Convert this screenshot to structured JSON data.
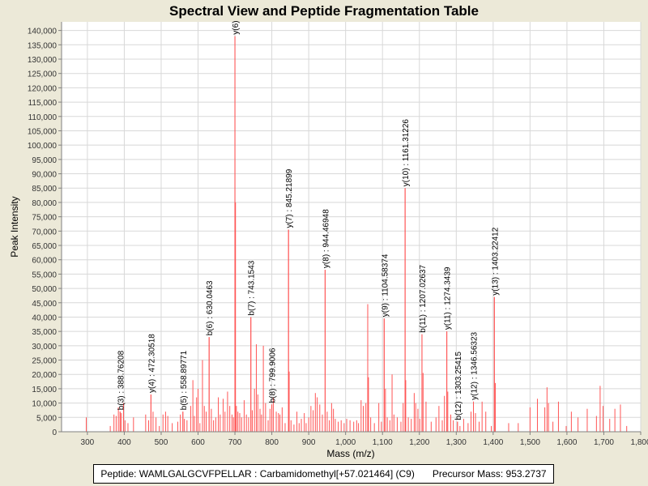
{
  "chart_data": {
    "type": "bar",
    "title": "Spectral View and Peptide Fragmentation Table",
    "xlabel": "Mass (m/z)",
    "ylabel": "Peak Intensity",
    "xlim": [
      230,
      1800
    ],
    "ylim": [
      0,
      143000
    ],
    "xticks": [
      300,
      400,
      500,
      600,
      700,
      800,
      900,
      1000,
      1100,
      1200,
      1300,
      1400,
      1500,
      1600,
      1700,
      1800
    ],
    "xtick_labels": [
      "300",
      "400",
      "500",
      "600",
      "700",
      "800",
      "900",
      "1,000",
      "1,100",
      "1,200",
      "1,300",
      "1,400",
      "1,500",
      "1,600",
      "1,700",
      "1,800"
    ],
    "yticks": [
      0,
      5000,
      10000,
      15000,
      20000,
      25000,
      30000,
      35000,
      40000,
      45000,
      50000,
      55000,
      60000,
      65000,
      70000,
      75000,
      80000,
      85000,
      90000,
      95000,
      100000,
      105000,
      110000,
      115000,
      120000,
      125000,
      130000,
      135000,
      140000
    ],
    "ytick_labels": [
      "0",
      "5,000",
      "10,000",
      "15,000",
      "20,000",
      "25,000",
      "30,000",
      "35,000",
      "40,000",
      "45,000",
      "50,000",
      "55,000",
      "60,000",
      "65,000",
      "70,000",
      "75,000",
      "80,000",
      "85,000",
      "90,000",
      "95,000",
      "100,000",
      "105,000",
      "110,000",
      "115,000",
      "120,000",
      "125,000",
      "130,000",
      "135,000",
      "140,000"
    ],
    "grid": true,
    "peak_color": "#ff5555",
    "annotated_peaks": [
      {
        "mz": 388.76,
        "intensity": 7000,
        "label": "b(3) : 388.76208"
      },
      {
        "mz": 472.31,
        "intensity": 13000,
        "label": "y(4) : 472.30518"
      },
      {
        "mz": 558.9,
        "intensity": 7000,
        "label": "b(5) : 558.89771"
      },
      {
        "mz": 630.05,
        "intensity": 33000,
        "label": "b(6) : 630.0463"
      },
      {
        "mz": 700.0,
        "intensity": 138000,
        "label": "y(6)"
      },
      {
        "mz": 743.15,
        "intensity": 40000,
        "label": "b(7) : 743.1543"
      },
      {
        "mz": 799.9,
        "intensity": 9500,
        "label": "b(8) : 799.9006"
      },
      {
        "mz": 845.22,
        "intensity": 70500,
        "label": "y(7) : 845.21899"
      },
      {
        "mz": 944.47,
        "intensity": 56500,
        "label": "y(8) : 944.46948"
      },
      {
        "mz": 1104.58,
        "intensity": 39500,
        "label": "y(9) : 1104.58374"
      },
      {
        "mz": 1161.31,
        "intensity": 85000,
        "label": "y(10) : 1161.31226"
      },
      {
        "mz": 1207.03,
        "intensity": 34000,
        "label": "b(11) : 1207.02637"
      },
      {
        "mz": 1274.34,
        "intensity": 35000,
        "label": "y(11) : 1274.3439"
      },
      {
        "mz": 1303.25,
        "intensity": 3500,
        "label": "b(12) : 1303.25415"
      },
      {
        "mz": 1346.56,
        "intensity": 10500,
        "label": "y(12) : 1346.56323"
      },
      {
        "mz": 1403.22,
        "intensity": 47000,
        "label": "y(13) : 1403.22412"
      }
    ],
    "peaks": [
      [
        297,
        5000
      ],
      [
        362,
        2000
      ],
      [
        372,
        6000
      ],
      [
        378,
        5500
      ],
      [
        384,
        8500
      ],
      [
        388.76,
        7000
      ],
      [
        392,
        6500
      ],
      [
        398,
        10000
      ],
      [
        402,
        4000
      ],
      [
        410,
        3000
      ],
      [
        425,
        5000
      ],
      [
        458,
        6000
      ],
      [
        466,
        4000
      ],
      [
        472.31,
        13000
      ],
      [
        478,
        7000
      ],
      [
        486,
        5000
      ],
      [
        495,
        2000
      ],
      [
        505,
        6000
      ],
      [
        512,
        7000
      ],
      [
        518,
        5500
      ],
      [
        530,
        3000
      ],
      [
        545,
        3500
      ],
      [
        552,
        6000
      ],
      [
        558.9,
        7000
      ],
      [
        563,
        4500
      ],
      [
        570,
        4000
      ],
      [
        580,
        9000
      ],
      [
        586,
        18000
      ],
      [
        590,
        5500
      ],
      [
        596,
        12000
      ],
      [
        600,
        15000
      ],
      [
        605,
        3000
      ],
      [
        612,
        25000
      ],
      [
        617,
        9000
      ],
      [
        622,
        7000
      ],
      [
        630.05,
        33000
      ],
      [
        636,
        8000
      ],
      [
        642,
        4000
      ],
      [
        648,
        5000
      ],
      [
        655,
        12000
      ],
      [
        660,
        6000
      ],
      [
        668,
        11500
      ],
      [
        673,
        7000
      ],
      [
        680,
        14000
      ],
      [
        686,
        9000
      ],
      [
        692,
        6000
      ],
      [
        696,
        5000
      ],
      [
        700,
        138000
      ],
      [
        701.5,
        80000
      ],
      [
        704,
        9000
      ],
      [
        708,
        7000
      ],
      [
        713,
        6500
      ],
      [
        718,
        5000
      ],
      [
        725,
        11000
      ],
      [
        731,
        6000
      ],
      [
        737,
        5000
      ],
      [
        743.15,
        40000
      ],
      [
        747,
        7500
      ],
      [
        753,
        15000
      ],
      [
        758,
        30500
      ],
      [
        762,
        13000
      ],
      [
        768,
        8000
      ],
      [
        772,
        6000
      ],
      [
        777,
        30000
      ],
      [
        783,
        10000
      ],
      [
        790,
        4000
      ],
      [
        795,
        8000
      ],
      [
        799.9,
        9500
      ],
      [
        804,
        12000
      ],
      [
        812,
        7000
      ],
      [
        818,
        6500
      ],
      [
        822,
        6000
      ],
      [
        828,
        8500
      ],
      [
        836,
        3000
      ],
      [
        845.22,
        70500
      ],
      [
        847,
        21000
      ],
      [
        852,
        4000
      ],
      [
        860,
        2500
      ],
      [
        868,
        7000
      ],
      [
        874,
        3000
      ],
      [
        880,
        4500
      ],
      [
        888,
        6500
      ],
      [
        893,
        3000
      ],
      [
        900,
        5000
      ],
      [
        906,
        9000
      ],
      [
        912,
        7500
      ],
      [
        918,
        13500
      ],
      [
        923,
        12000
      ],
      [
        930,
        9500
      ],
      [
        937,
        6000
      ],
      [
        944.47,
        56500
      ],
      [
        950,
        7000
      ],
      [
        956,
        4000
      ],
      [
        962,
        10000
      ],
      [
        967,
        8000
      ],
      [
        972,
        4500
      ],
      [
        980,
        3500
      ],
      [
        988,
        4000
      ],
      [
        996,
        3000
      ],
      [
        1003,
        4500
      ],
      [
        1012,
        4000
      ],
      [
        1022,
        3500
      ],
      [
        1030,
        4000
      ],
      [
        1035,
        3000
      ],
      [
        1042,
        11000
      ],
      [
        1048,
        9000
      ],
      [
        1055,
        10000
      ],
      [
        1060,
        44500
      ],
      [
        1062,
        19000
      ],
      [
        1068,
        5000
      ],
      [
        1078,
        3000
      ],
      [
        1090,
        10000
      ],
      [
        1097,
        3500
      ],
      [
        1104.58,
        39500
      ],
      [
        1108,
        15000
      ],
      [
        1113,
        5000
      ],
      [
        1120,
        4000
      ],
      [
        1126,
        20000
      ],
      [
        1131,
        6000
      ],
      [
        1140,
        5000
      ],
      [
        1150,
        3500
      ],
      [
        1156,
        10000
      ],
      [
        1161.31,
        85000
      ],
      [
        1163,
        18000
      ],
      [
        1170,
        5000
      ],
      [
        1178,
        4500
      ],
      [
        1186,
        13500
      ],
      [
        1190,
        10000
      ],
      [
        1196,
        8000
      ],
      [
        1201,
        4500
      ],
      [
        1207.03,
        34000
      ],
      [
        1210,
        20500
      ],
      [
        1218,
        10500
      ],
      [
        1232,
        3500
      ],
      [
        1245,
        5000
      ],
      [
        1253,
        9000
      ],
      [
        1262,
        4000
      ],
      [
        1268,
        12500
      ],
      [
        1274.34,
        35000
      ],
      [
        1277,
        14000
      ],
      [
        1285,
        6000
      ],
      [
        1292,
        4000
      ],
      [
        1303.25,
        3500
      ],
      [
        1310,
        2000
      ],
      [
        1320,
        4500
      ],
      [
        1332,
        3000
      ],
      [
        1340,
        7000
      ],
      [
        1346.56,
        10500
      ],
      [
        1352,
        6500
      ],
      [
        1362,
        3500
      ],
      [
        1370,
        10500
      ],
      [
        1380,
        7000
      ],
      [
        1395,
        2000
      ],
      [
        1403.22,
        47000
      ],
      [
        1406,
        17000
      ],
      [
        1442,
        3000
      ],
      [
        1468,
        3000
      ],
      [
        1500,
        8500
      ],
      [
        1520,
        11500
      ],
      [
        1540,
        8500
      ],
      [
        1546,
        15500
      ],
      [
        1550,
        10000
      ],
      [
        1562,
        3500
      ],
      [
        1577,
        10500
      ],
      [
        1598,
        2000
      ],
      [
        1612,
        7000
      ],
      [
        1630,
        5000
      ],
      [
        1655,
        8000
      ],
      [
        1680,
        5500
      ],
      [
        1690,
        16000
      ],
      [
        1698,
        9000
      ],
      [
        1716,
        4500
      ],
      [
        1730,
        8000
      ],
      [
        1745,
        9500
      ],
      [
        1762,
        2000
      ]
    ]
  },
  "legend": {
    "peptide": "Peptide: WAMLGALGCVFPELLAR : Carbamidomethyl[+57.021464] (C9)",
    "precursor": "Precursor Mass: 953.2737"
  }
}
